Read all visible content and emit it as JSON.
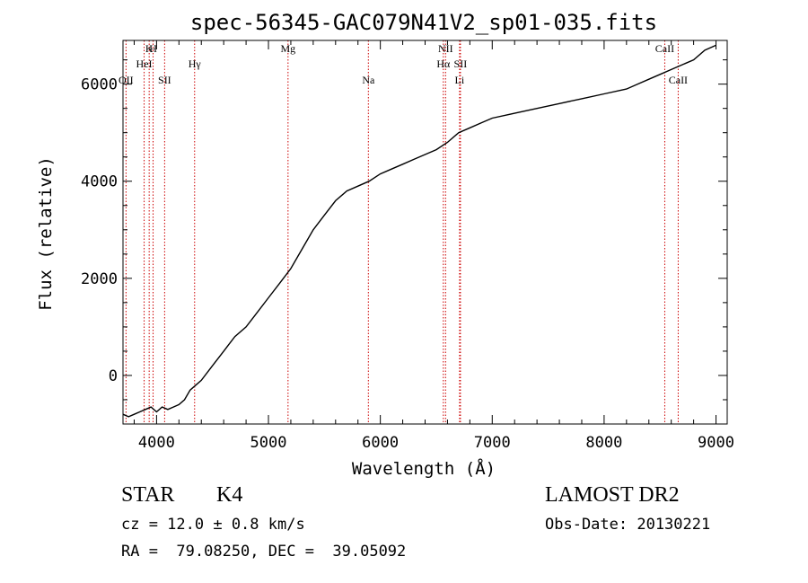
{
  "chart_data": {
    "type": "line",
    "title": "spec-56345-GAC079N41V2_sp01-035.fits",
    "xlabel": "Wavelength (Å)",
    "ylabel": "Flux (relative)",
    "xlim": [
      3700,
      9100
    ],
    "ylim": [
      -1000,
      6900
    ],
    "xticks": [
      4000,
      5000,
      6000,
      7000,
      8000,
      9000
    ],
    "xtick_labels": [
      "4000",
      "5000",
      "6000",
      "7000",
      "8000",
      "9000"
    ],
    "yticks": [
      0,
      2000,
      4000,
      6000
    ],
    "ytick_labels": [
      "0",
      "2000",
      "4000",
      "6000"
    ],
    "grid": false,
    "line_color": "#000000",
    "marker_color": "#cc0000",
    "series": [
      {
        "x": [
          3700,
          3750,
          3800,
          3850,
          3900,
          3950,
          4000,
          4050,
          4100,
          4150,
          4200,
          4250,
          4300,
          4350,
          4400,
          4500,
          4600,
          4700,
          4800,
          4900,
          5000,
          5100,
          5200,
          5300,
          5400,
          5500,
          5600,
          5700,
          5800,
          5900,
          6000,
          6100,
          6200,
          6300,
          6400,
          6500,
          6600,
          6700,
          6800,
          6900,
          7000,
          7200,
          7400,
          7600,
          7800,
          8000,
          8200,
          8300,
          8400,
          8500,
          8600,
          8700,
          8800,
          8900,
          9000
        ],
        "y": [
          -800,
          -850,
          -800,
          -750,
          -700,
          -650,
          -750,
          -650,
          -700,
          -650,
          -600,
          -500,
          -300,
          -200,
          -100,
          200,
          500,
          800,
          1000,
          1300,
          1600,
          1900,
          2200,
          2600,
          3000,
          3300,
          3600,
          3800,
          3900,
          4000,
          4150,
          4250,
          4350,
          4450,
          4550,
          4650,
          4800,
          5000,
          5100,
          5200,
          5300,
          5400,
          5500,
          5600,
          5700,
          5800,
          5900,
          6000,
          6100,
          6200,
          6300,
          6400,
          6500,
          6700,
          6800
        ]
      }
    ],
    "line_markers": [
      {
        "wave": 3727,
        "label": "OII",
        "row": 2
      },
      {
        "wave": 3934,
        "label": "K",
        "row": 0
      },
      {
        "wave": 3969,
        "label": "H",
        "row": 0
      },
      {
        "wave": 3889,
        "label": "HeI",
        "row": 1
      },
      {
        "wave": 4072,
        "label": "SII",
        "row": 2
      },
      {
        "wave": 4340,
        "label": "Hγ",
        "row": 1
      },
      {
        "wave": 5175,
        "label": "Mg",
        "row": 0
      },
      {
        "wave": 5893,
        "label": "Na",
        "row": 2
      },
      {
        "wave": 6583,
        "label": "NII",
        "row": 0
      },
      {
        "wave": 6563,
        "label": "Hα",
        "row": 1
      },
      {
        "wave": 6716,
        "label": "SII",
        "row": 1
      },
      {
        "wave": 6708,
        "label": "Li",
        "row": 2
      },
      {
        "wave": 8542,
        "label": "CaII",
        "row": 0
      },
      {
        "wave": 8662,
        "label": "CaII",
        "row": 2
      }
    ]
  },
  "info": {
    "class": "STAR",
    "subclass": "K4",
    "survey": "LAMOST DR2",
    "cz": "cz = 12.0 ± 0.8 km/s",
    "obs_date": "Obs-Date: 20130221",
    "radec": "RA =  79.08250, DEC =  39.05092"
  }
}
